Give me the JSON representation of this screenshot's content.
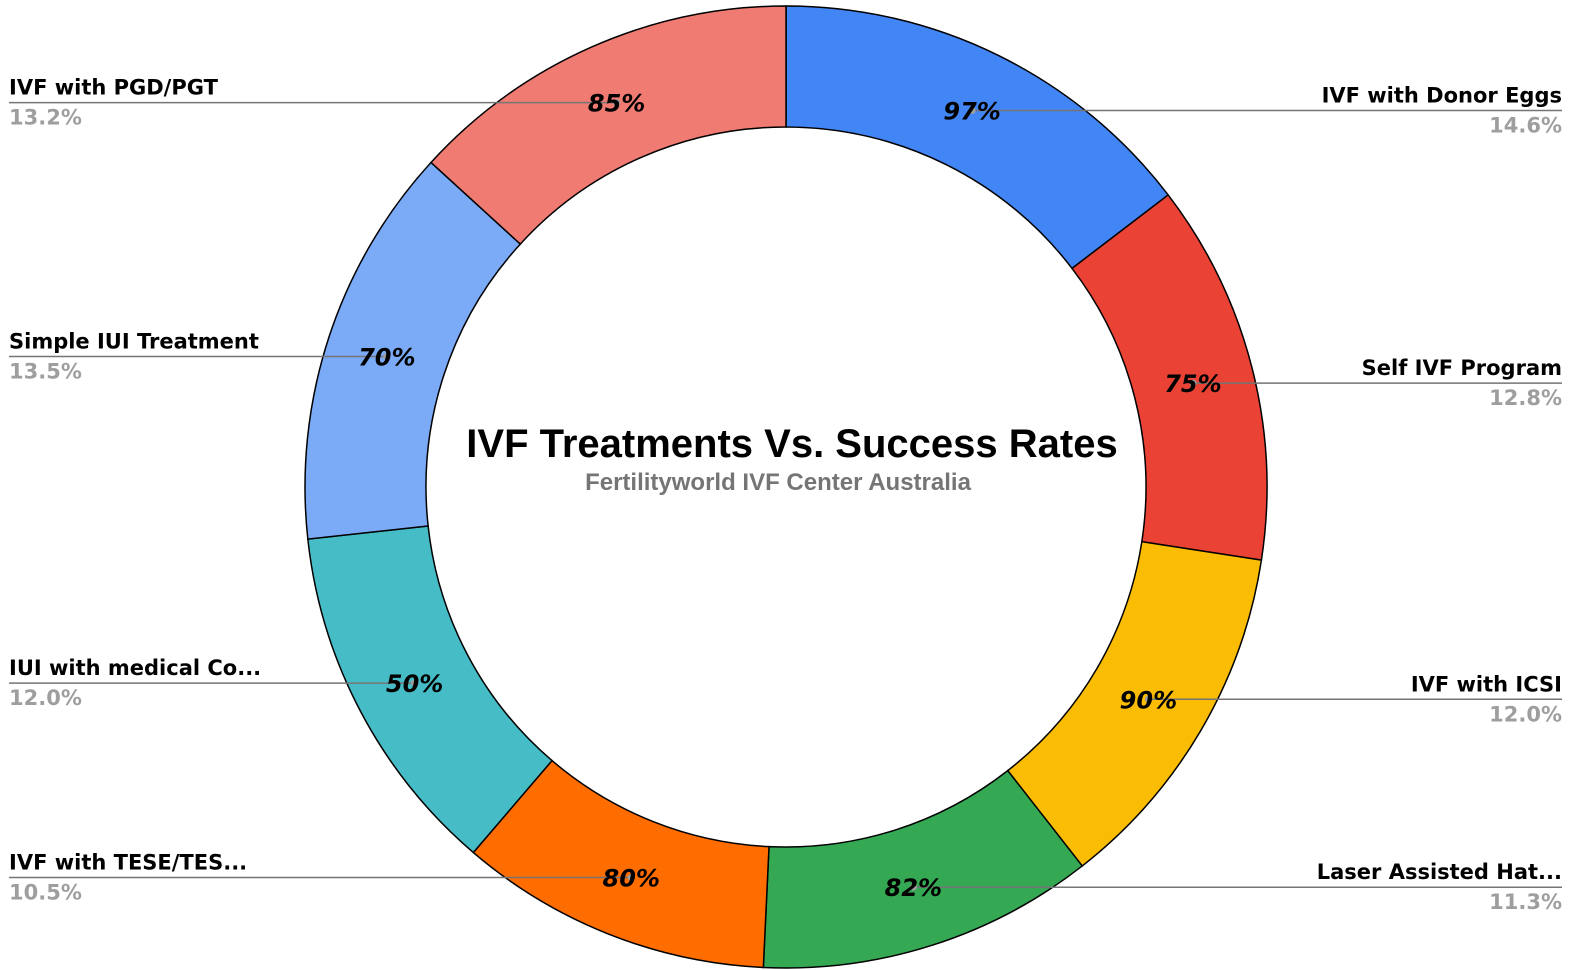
{
  "chart_data": {
    "type": "pie",
    "title": "IVF Treatments Vs. Success Rates",
    "subtitle": "Fertilityworld IVF Center Australia",
    "slices": [
      {
        "label": "IVF with Donor Eggs",
        "value": 97,
        "value_label": "97%",
        "percent": 14.6,
        "percent_label": "14.6%",
        "color": "#4285f4"
      },
      {
        "label": "Self IVF Program",
        "value": 75,
        "value_label": "75%",
        "percent": 12.8,
        "percent_label": "12.8%",
        "color": "#ea4335"
      },
      {
        "label": "IVF with ICSI",
        "value": 90,
        "value_label": "90%",
        "percent": 12.0,
        "percent_label": "12.0%",
        "color": "#fbbc04"
      },
      {
        "label": "Laser Assisted Hat...",
        "value": 82,
        "value_label": "82%",
        "percent": 11.3,
        "percent_label": "11.3%",
        "color": "#34a853"
      },
      {
        "label": "IVF with TESE/TES...",
        "value": 80,
        "value_label": "80%",
        "percent": 10.5,
        "percent_label": "10.5%",
        "color": "#ff6d01"
      },
      {
        "label": "IUI with medical Co...",
        "value": 50,
        "value_label": "50%",
        "percent": 12.0,
        "percent_label": "12.0%",
        "color": "#46bdc6"
      },
      {
        "label": "Simple IUI Treatment",
        "value": 70,
        "value_label": "70%",
        "percent": 13.5,
        "percent_label": "13.5%",
        "color": "#7baaf7"
      },
      {
        "label": "IVF with PGD/PGT",
        "value": 85,
        "value_label": "85%",
        "percent": 13.2,
        "percent_label": "13.2%",
        "color": "#f07b72"
      }
    ],
    "donut": true,
    "start_angle": "12 o'clock, clockwise",
    "legend": "callout labels beside slices"
  }
}
